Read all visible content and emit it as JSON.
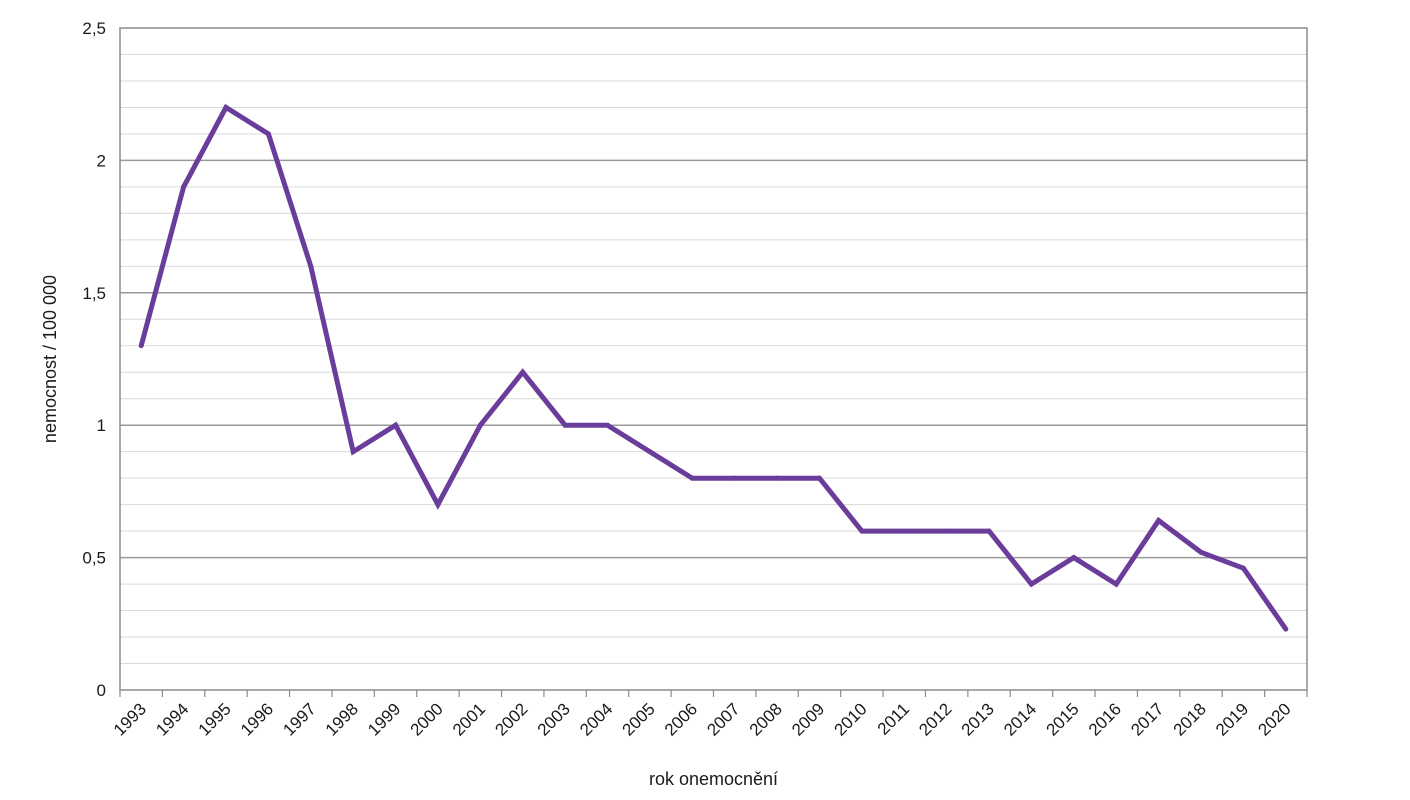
{
  "chart_data": {
    "type": "line",
    "title": "",
    "xlabel": "rok onemocnění",
    "ylabel": "nemocnost / 100 000",
    "ylim": [
      0,
      2.5
    ],
    "y_ticks": [
      "0",
      "0,5",
      "1",
      "1,5",
      "2",
      "2,5"
    ],
    "y_tick_values": [
      0,
      0.5,
      1,
      1.5,
      2,
      2.5
    ],
    "y_minor_step": 0.1,
    "grid": true,
    "legend": "none",
    "series_color": "#6a3d9a",
    "categories": [
      "1993",
      "1994",
      "1995",
      "1996",
      "1997",
      "1998",
      "1999",
      "2000",
      "2001",
      "2002",
      "2003",
      "2004",
      "2005",
      "2006",
      "2007",
      "2008",
      "2009",
      "2010",
      "2011",
      "2012",
      "2013",
      "2014",
      "2015",
      "2016",
      "2017",
      "2018",
      "2019",
      "2020"
    ],
    "series": [
      {
        "values": [
          1.3,
          1.9,
          2.2,
          2.1,
          1.6,
          0.9,
          1.0,
          0.7,
          1.0,
          1.2,
          1.0,
          1.0,
          0.9,
          0.8,
          0.8,
          0.8,
          0.8,
          0.6,
          0.6,
          0.6,
          0.6,
          0.4,
          0.5,
          0.4,
          0.64,
          0.52,
          0.46,
          0.23
        ]
      }
    ]
  }
}
